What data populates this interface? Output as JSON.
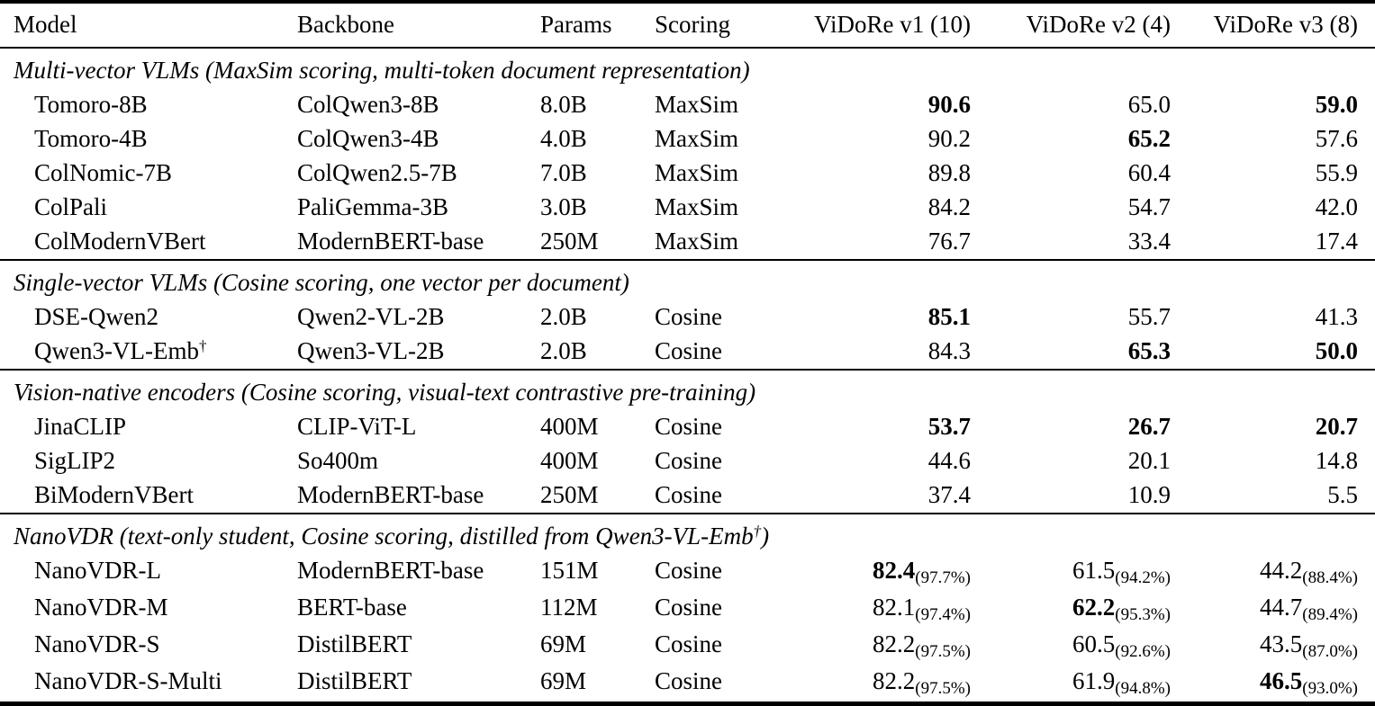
{
  "colors": {
    "background": "#ffffff",
    "text": "#000000",
    "rule": "#000000"
  },
  "table": {
    "columns": [
      {
        "key": "model",
        "label": "Model",
        "align": "left"
      },
      {
        "key": "backbone",
        "label": "Backbone",
        "align": "left"
      },
      {
        "key": "params",
        "label": "Params",
        "align": "left"
      },
      {
        "key": "scoring",
        "label": "Scoring",
        "align": "left"
      },
      {
        "key": "v1",
        "label": "ViDoRe v1 (10)",
        "align": "right"
      },
      {
        "key": "v2",
        "label": "ViDoRe v2 (4)",
        "align": "right"
      },
      {
        "key": "v3",
        "label": "ViDoRe v3 (8)",
        "align": "right"
      }
    ],
    "sections": [
      {
        "header": "Multi-vector VLMs (MaxSim scoring, multi-token document representation)",
        "rows": [
          {
            "model": "Tomoro-8B",
            "backbone": "ColQwen3-8B",
            "params": "8.0B",
            "scoring": "MaxSim",
            "v1": {
              "v": "90.6",
              "b": true
            },
            "v2": {
              "v": "65.0"
            },
            "v3": {
              "v": "59.0",
              "b": true
            }
          },
          {
            "model": "Tomoro-4B",
            "backbone": "ColQwen3-4B",
            "params": "4.0B",
            "scoring": "MaxSim",
            "v1": {
              "v": "90.2"
            },
            "v2": {
              "v": "65.2",
              "b": true
            },
            "v3": {
              "v": "57.6"
            }
          },
          {
            "model": "ColNomic-7B",
            "backbone": "ColQwen2.5-7B",
            "params": "7.0B",
            "scoring": "MaxSim",
            "v1": {
              "v": "89.8"
            },
            "v2": {
              "v": "60.4"
            },
            "v3": {
              "v": "55.9"
            }
          },
          {
            "model": "ColPali",
            "backbone": "PaliGemma-3B",
            "params": "3.0B",
            "scoring": "MaxSim",
            "v1": {
              "v": "84.2"
            },
            "v2": {
              "v": "54.7"
            },
            "v3": {
              "v": "42.0"
            }
          },
          {
            "model": "ColModernVBert",
            "backbone": "ModernBERT-base",
            "params": "250M",
            "scoring": "MaxSim",
            "v1": {
              "v": "76.7"
            },
            "v2": {
              "v": "33.4"
            },
            "v3": {
              "v": "17.4"
            }
          }
        ]
      },
      {
        "header": "Single-vector VLMs (Cosine scoring, one vector per document)",
        "rows": [
          {
            "model": "DSE-Qwen2",
            "backbone": "Qwen2-VL-2B",
            "params": "2.0B",
            "scoring": "Cosine",
            "v1": {
              "v": "85.1",
              "b": true
            },
            "v2": {
              "v": "55.7"
            },
            "v3": {
              "v": "41.3"
            }
          },
          {
            "model": "Qwen3-VL-Emb†",
            "backbone": "Qwen3-VL-2B",
            "params": "2.0B",
            "scoring": "Cosine",
            "v1": {
              "v": "84.3"
            },
            "v2": {
              "v": "65.3",
              "b": true
            },
            "v3": {
              "v": "50.0",
              "b": true
            }
          }
        ]
      },
      {
        "header": "Vision-native encoders (Cosine scoring, visual-text contrastive pre-training)",
        "rows": [
          {
            "model": "JinaCLIP",
            "backbone": "CLIP-ViT-L",
            "params": "400M",
            "scoring": "Cosine",
            "v1": {
              "v": "53.7",
              "b": true
            },
            "v2": {
              "v": "26.7",
              "b": true
            },
            "v3": {
              "v": "20.7",
              "b": true
            }
          },
          {
            "model": "SigLIP2",
            "backbone": "So400m",
            "params": "400M",
            "scoring": "Cosine",
            "v1": {
              "v": "44.6"
            },
            "v2": {
              "v": "20.1"
            },
            "v3": {
              "v": "14.8"
            }
          },
          {
            "model": "BiModernVBert",
            "backbone": "ModernBERT-base",
            "params": "250M",
            "scoring": "Cosine",
            "v1": {
              "v": "37.4"
            },
            "v2": {
              "v": "10.9"
            },
            "v3": {
              "v": "5.5"
            }
          }
        ]
      },
      {
        "header": "NanoVDR (text-only student, Cosine scoring, distilled from Qwen3-VL-Emb†)",
        "rows": [
          {
            "model": "NanoVDR-L",
            "backbone": "ModernBERT-base",
            "params": "151M",
            "scoring": "Cosine",
            "v1": {
              "v": "82.4",
              "b": true,
              "sub": "(97.7%)"
            },
            "v2": {
              "v": "61.5",
              "sub": "(94.2%)"
            },
            "v3": {
              "v": "44.2",
              "sub": "(88.4%)"
            }
          },
          {
            "model": "NanoVDR-M",
            "backbone": "BERT-base",
            "params": "112M",
            "scoring": "Cosine",
            "v1": {
              "v": "82.1",
              "sub": "(97.4%)"
            },
            "v2": {
              "v": "62.2",
              "b": true,
              "sub": "(95.3%)"
            },
            "v3": {
              "v": "44.7",
              "sub": "(89.4%)"
            }
          },
          {
            "model": "NanoVDR-S",
            "backbone": "DistilBERT",
            "params": "69M",
            "scoring": "Cosine",
            "v1": {
              "v": "82.2",
              "sub": "(97.5%)"
            },
            "v2": {
              "v": "60.5",
              "sub": "(92.6%)"
            },
            "v3": {
              "v": "43.5",
              "sub": "(87.0%)"
            }
          },
          {
            "model": "NanoVDR-S-Multi",
            "backbone": "DistilBERT",
            "params": "69M",
            "scoring": "Cosine",
            "v1": {
              "v": "82.2",
              "sub": "(97.5%)"
            },
            "v2": {
              "v": "61.9",
              "sub": "(94.8%)"
            },
            "v3": {
              "v": "46.5",
              "b": true,
              "sub": "(93.0%)"
            }
          }
        ]
      }
    ]
  }
}
